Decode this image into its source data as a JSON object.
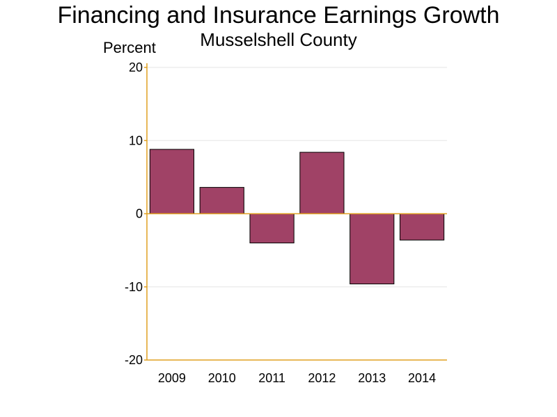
{
  "title": "Financing and Insurance Earnings Growth",
  "subtitle": "Musselshell County",
  "ylabel": "Percent",
  "colors": {
    "bar": "#a04266",
    "axis": "#e0a020",
    "grid": "#e6e6e6",
    "bar_edge": "#000000"
  },
  "chart_data": {
    "type": "bar",
    "categories": [
      "2009",
      "2010",
      "2011",
      "2012",
      "2013",
      "2014"
    ],
    "values": [
      8.8,
      3.6,
      -4.0,
      8.4,
      -9.6,
      -3.6
    ],
    "ylabel": "Percent",
    "ylim": [
      -20,
      20
    ],
    "yticks": [
      "-20",
      "-10",
      "0",
      "10",
      "20"
    ],
    "grid": true,
    "legend": "none"
  }
}
